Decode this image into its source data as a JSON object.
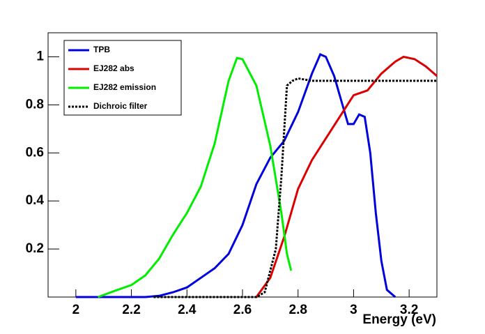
{
  "chart_data": {
    "type": "line",
    "xlabel": "Energy (eV)",
    "xlim": [
      1.9,
      3.3
    ],
    "ylim": [
      0,
      1.1
    ],
    "xticks": [
      2,
      2.2,
      2.4,
      2.6,
      2.8,
      3,
      3.2
    ],
    "yticks": [
      0.2,
      0.4,
      0.6,
      0.8,
      1
    ],
    "legend": "top-left",
    "series": [
      {
        "name": "TPB",
        "color": "#0000dd",
        "dash": "solid",
        "x": [
          2.0,
          2.25,
          2.3,
          2.35,
          2.4,
          2.45,
          2.5,
          2.55,
          2.6,
          2.65,
          2.7,
          2.75,
          2.8,
          2.85,
          2.88,
          2.9,
          2.93,
          2.96,
          2.98,
          3.0,
          3.02,
          3.04,
          3.06,
          3.08,
          3.1,
          3.12,
          3.15
        ],
        "values": [
          0,
          0,
          0.005,
          0.02,
          0.04,
          0.08,
          0.12,
          0.18,
          0.3,
          0.47,
          0.58,
          0.65,
          0.77,
          0.93,
          1.01,
          1.0,
          0.92,
          0.8,
          0.72,
          0.72,
          0.76,
          0.75,
          0.6,
          0.35,
          0.15,
          0.03,
          0
        ]
      },
      {
        "name": "EJ282 abs",
        "color": "#dd0000",
        "dash": "solid",
        "x": [
          2.65,
          2.7,
          2.75,
          2.8,
          2.85,
          2.9,
          2.95,
          3.0,
          3.05,
          3.1,
          3.15,
          3.18,
          3.22,
          3.26,
          3.3
        ],
        "values": [
          0,
          0.08,
          0.25,
          0.45,
          0.57,
          0.66,
          0.75,
          0.84,
          0.86,
          0.93,
          0.98,
          1.0,
          0.99,
          0.96,
          0.92
        ]
      },
      {
        "name": "EJ282 emission",
        "color": "#00ee00",
        "dash": "solid",
        "x": [
          2.08,
          2.15,
          2.2,
          2.25,
          2.3,
          2.35,
          2.4,
          2.45,
          2.5,
          2.55,
          2.58,
          2.6,
          2.65,
          2.7,
          2.74,
          2.76,
          2.775
        ],
        "values": [
          0,
          0.03,
          0.05,
          0.09,
          0.16,
          0.26,
          0.35,
          0.46,
          0.64,
          0.9,
          0.995,
          0.99,
          0.88,
          0.63,
          0.35,
          0.18,
          0.11
        ]
      },
      {
        "name": "Dichroic filter",
        "color": "#000000",
        "dash": "dotted",
        "x": [
          2.28,
          2.65,
          2.68,
          2.72,
          2.74,
          2.76,
          2.78,
          2.8,
          2.85,
          3.3
        ],
        "values": [
          0,
          0,
          0.02,
          0.2,
          0.5,
          0.88,
          0.9,
          0.91,
          0.9,
          0.9
        ]
      }
    ]
  }
}
